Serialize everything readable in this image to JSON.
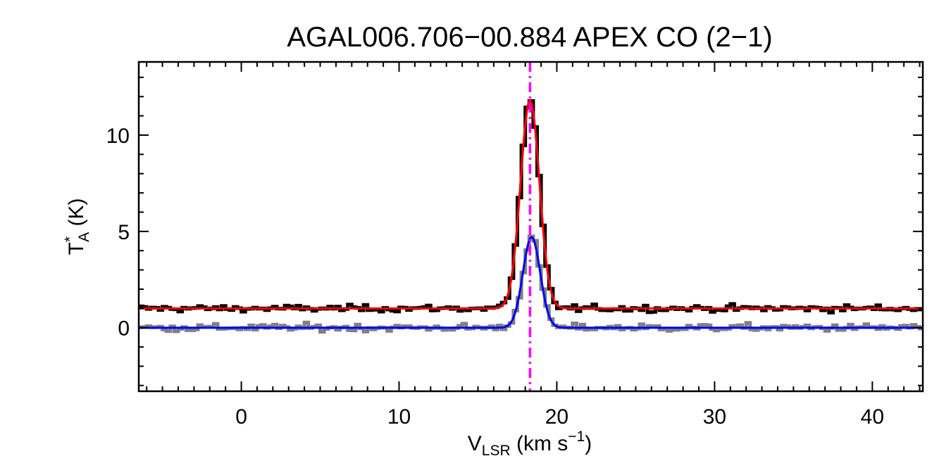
{
  "chart_data": {
    "type": "line",
    "title": "AGAL006.706−00.884  APEX CO (2−1)",
    "xlabel": {
      "main": "V",
      "sub": "LSR",
      "after": " (km s",
      "sup": "−1",
      "close": ")"
    },
    "ylabel": {
      "main": "T",
      "sup": "*",
      "sub": "A",
      "after": " (K)"
    },
    "xlim": [
      -6.5,
      43.2
    ],
    "ylim": [
      -3.3,
      13.8
    ],
    "x_ticks": [
      0,
      10,
      20,
      30,
      40
    ],
    "x_tick_labels": [
      "0",
      "10",
      "20",
      "30",
      "40"
    ],
    "y_ticks": [
      0,
      5,
      10
    ],
    "y_tick_labels": [
      "0",
      "5",
      "10"
    ],
    "grid": false,
    "vline": {
      "x": 18.3,
      "color": "#ff00ff",
      "style": "dash-dot"
    },
    "series": [
      {
        "kind": "histogram",
        "color": "#000000",
        "offset": 1.0,
        "profile": {
          "amplitude": 10.8,
          "center": 18.3,
          "sigma": 0.6
        },
        "noise_rms": 0.12
      },
      {
        "kind": "histogram",
        "color": "#808080",
        "offset": 0.0,
        "profile": {
          "amplitude": 4.7,
          "center": 18.4,
          "sigma": 0.55
        },
        "noise_rms": 0.14
      },
      {
        "kind": "fit",
        "color": "#ff0000",
        "offset": 1.0,
        "profile": {
          "amplitude": 10.8,
          "center": 18.3,
          "sigma": 0.6
        }
      },
      {
        "kind": "fit",
        "color": "#0000ff",
        "offset": 0.0,
        "profile": {
          "amplitude": 4.7,
          "center": 18.4,
          "sigma": 0.55
        }
      }
    ]
  }
}
